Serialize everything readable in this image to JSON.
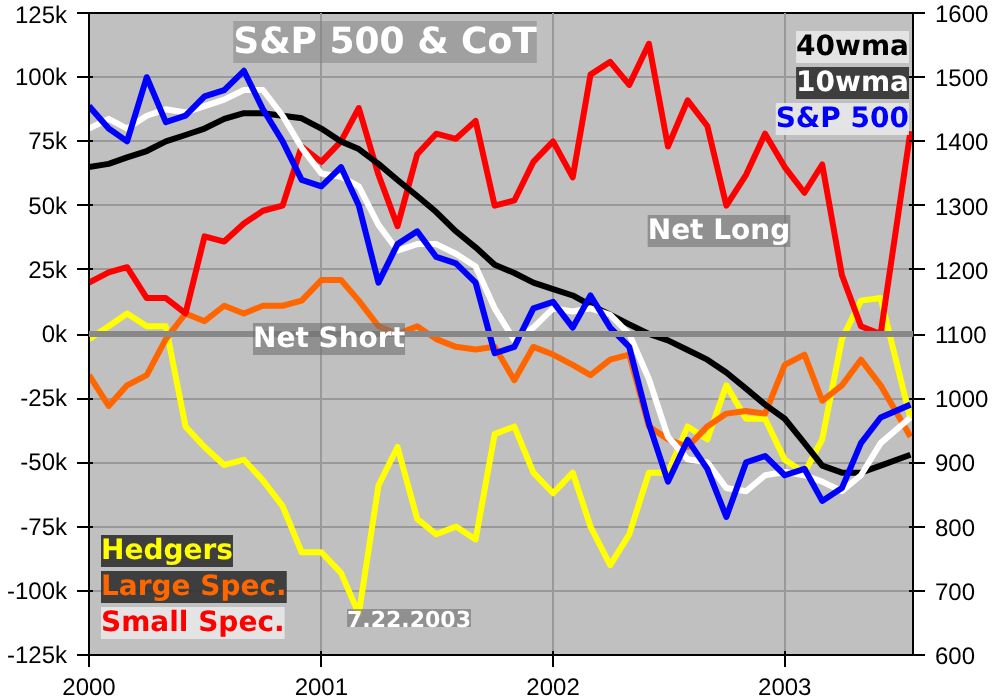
{
  "chart_data": {
    "type": "line",
    "title": "S&P 500 & CoT",
    "x": [
      "2000-01",
      "2000-02",
      "2000-03",
      "2000-04",
      "2000-05",
      "2000-06",
      "2000-07",
      "2000-08",
      "2000-09",
      "2000-10",
      "2000-11",
      "2000-12",
      "2001-01",
      "2001-02",
      "2001-03",
      "2001-04",
      "2001-05",
      "2001-06",
      "2001-07",
      "2001-08",
      "2001-09",
      "2001-10",
      "2001-11",
      "2001-12",
      "2002-01",
      "2002-02",
      "2002-03",
      "2002-04",
      "2002-05",
      "2002-06",
      "2002-07",
      "2002-08",
      "2002-09",
      "2002-10",
      "2002-11",
      "2002-12",
      "2003-01",
      "2003-02",
      "2003-03",
      "2003-04",
      "2003-05",
      "2003-06",
      "2003-07-18"
    ],
    "series": [
      {
        "name": "Hedgers",
        "color": "#ffff00",
        "axis": "y",
        "values": [
          -2,
          3,
          8,
          3,
          3,
          -36,
          -44,
          -51,
          -49,
          -57,
          -67,
          -85,
          -85,
          -93,
          -109,
          -59,
          -44,
          -72,
          -78,
          -75,
          -80,
          -39,
          -36,
          -54,
          -62,
          -54,
          -75,
          -90,
          -78,
          -54,
          -54,
          -36,
          -41,
          -20,
          -33,
          -33,
          -49,
          -54,
          -41,
          -2,
          13,
          14,
          -33
        ]
      },
      {
        "name": "Large Spec.",
        "color": "#ff6600",
        "axis": "y",
        "values": [
          -16,
          -28,
          -20,
          -16,
          -2,
          8,
          5,
          11,
          8,
          11,
          11,
          13,
          21,
          21,
          13,
          3,
          0,
          3,
          -2,
          -5,
          -6,
          -5,
          -18,
          -5,
          -8,
          -12,
          -16,
          -10,
          -8,
          -36,
          -41,
          -44,
          -36,
          -31,
          -30,
          -31,
          -12,
          -8,
          -26,
          -20,
          -10,
          -20,
          -40
        ]
      },
      {
        "name": "Small Spec.",
        "color": "#ff0000",
        "axis": "y",
        "values": [
          20,
          24,
          26,
          14,
          14,
          8,
          38,
          36,
          43,
          48,
          50,
          73,
          67,
          75,
          88,
          62,
          42,
          70,
          78,
          76,
          83,
          50,
          52,
          67,
          75,
          61,
          101,
          106,
          97,
          113,
          73,
          91,
          81,
          50,
          62,
          78,
          65,
          55,
          66,
          23,
          3,
          0,
          79
        ]
      },
      {
        "name": "40wma",
        "color": "#000000",
        "axis": "y2",
        "values": [
          1360,
          1365,
          1375,
          1385,
          1400,
          1410,
          1420,
          1435,
          1444,
          1444,
          1440,
          1436,
          1420,
          1400,
          1388,
          1365,
          1340,
          1315,
          1290,
          1260,
          1235,
          1208,
          1195,
          1180,
          1170,
          1160,
          1145,
          1130,
          1115,
          1100,
          1090,
          1075,
          1060,
          1040,
          1015,
          990,
          968,
          930,
          895,
          884,
          884,
          895,
          912
        ]
      },
      {
        "name": "10wma",
        "color": "#ffffff",
        "axis": "y2",
        "values": [
          1420,
          1435,
          1420,
          1440,
          1450,
          1445,
          1455,
          1465,
          1480,
          1480,
          1440,
          1390,
          1350,
          1345,
          1330,
          1270,
          1230,
          1240,
          1240,
          1225,
          1205,
          1140,
          1090,
          1110,
          1140,
          1135,
          1140,
          1130,
          1100,
          1030,
          940,
          905,
          900,
          860,
          855,
          880,
          885,
          880,
          870,
          855,
          880,
          930,
          970
        ]
      },
      {
        "name": "S&P 500",
        "color": "#0000ff",
        "axis": "y2",
        "values": [
          1455,
          1420,
          1400,
          1500,
          1430,
          1440,
          1470,
          1480,
          1510,
          1450,
          1400,
          1340,
          1330,
          1360,
          1300,
          1180,
          1240,
          1260,
          1220,
          1210,
          1180,
          1070,
          1080,
          1140,
          1150,
          1110,
          1160,
          1110,
          1080,
          960,
          870,
          935,
          890,
          815,
          900,
          910,
          880,
          890,
          840,
          860,
          930,
          970,
          990
        ]
      }
    ],
    "xlim": [
      "2000-01-01",
      "2003-07-22"
    ],
    "xticks": [
      {
        "value": "2000-01-01",
        "label": "2000"
      },
      {
        "value": "2001-01-01",
        "label": "2001"
      },
      {
        "value": "2002-01-01",
        "label": "2002"
      },
      {
        "value": "2003-01-01",
        "label": "2003"
      }
    ],
    "ylim": [
      -125,
      125
    ],
    "yticks": [
      {
        "value": -125,
        "label": "-125k"
      },
      {
        "value": -100,
        "label": "-100k"
      },
      {
        "value": -75,
        "label": "-75k"
      },
      {
        "value": -50,
        "label": "-50k"
      },
      {
        "value": -25,
        "label": "-25k"
      },
      {
        "value": 0,
        "label": "0k"
      },
      {
        "value": 25,
        "label": "25k"
      },
      {
        "value": 50,
        "label": "50k"
      },
      {
        "value": 75,
        "label": "75k"
      },
      {
        "value": 100,
        "label": "100k"
      },
      {
        "value": 125,
        "label": "125k"
      }
    ],
    "y2lim": [
      600,
      1600
    ],
    "y2ticks": [
      600,
      700,
      800,
      900,
      1000,
      1100,
      1200,
      1300,
      1400,
      1500,
      1600
    ],
    "ref_lines": [
      {
        "axis": "y",
        "value": 0,
        "color": "#888888"
      }
    ],
    "annotations": [
      "Net Long",
      "Net Short",
      "7.22.2003"
    ],
    "grid": true,
    "legend": "bottom left",
    "line_style": "solid"
  }
}
